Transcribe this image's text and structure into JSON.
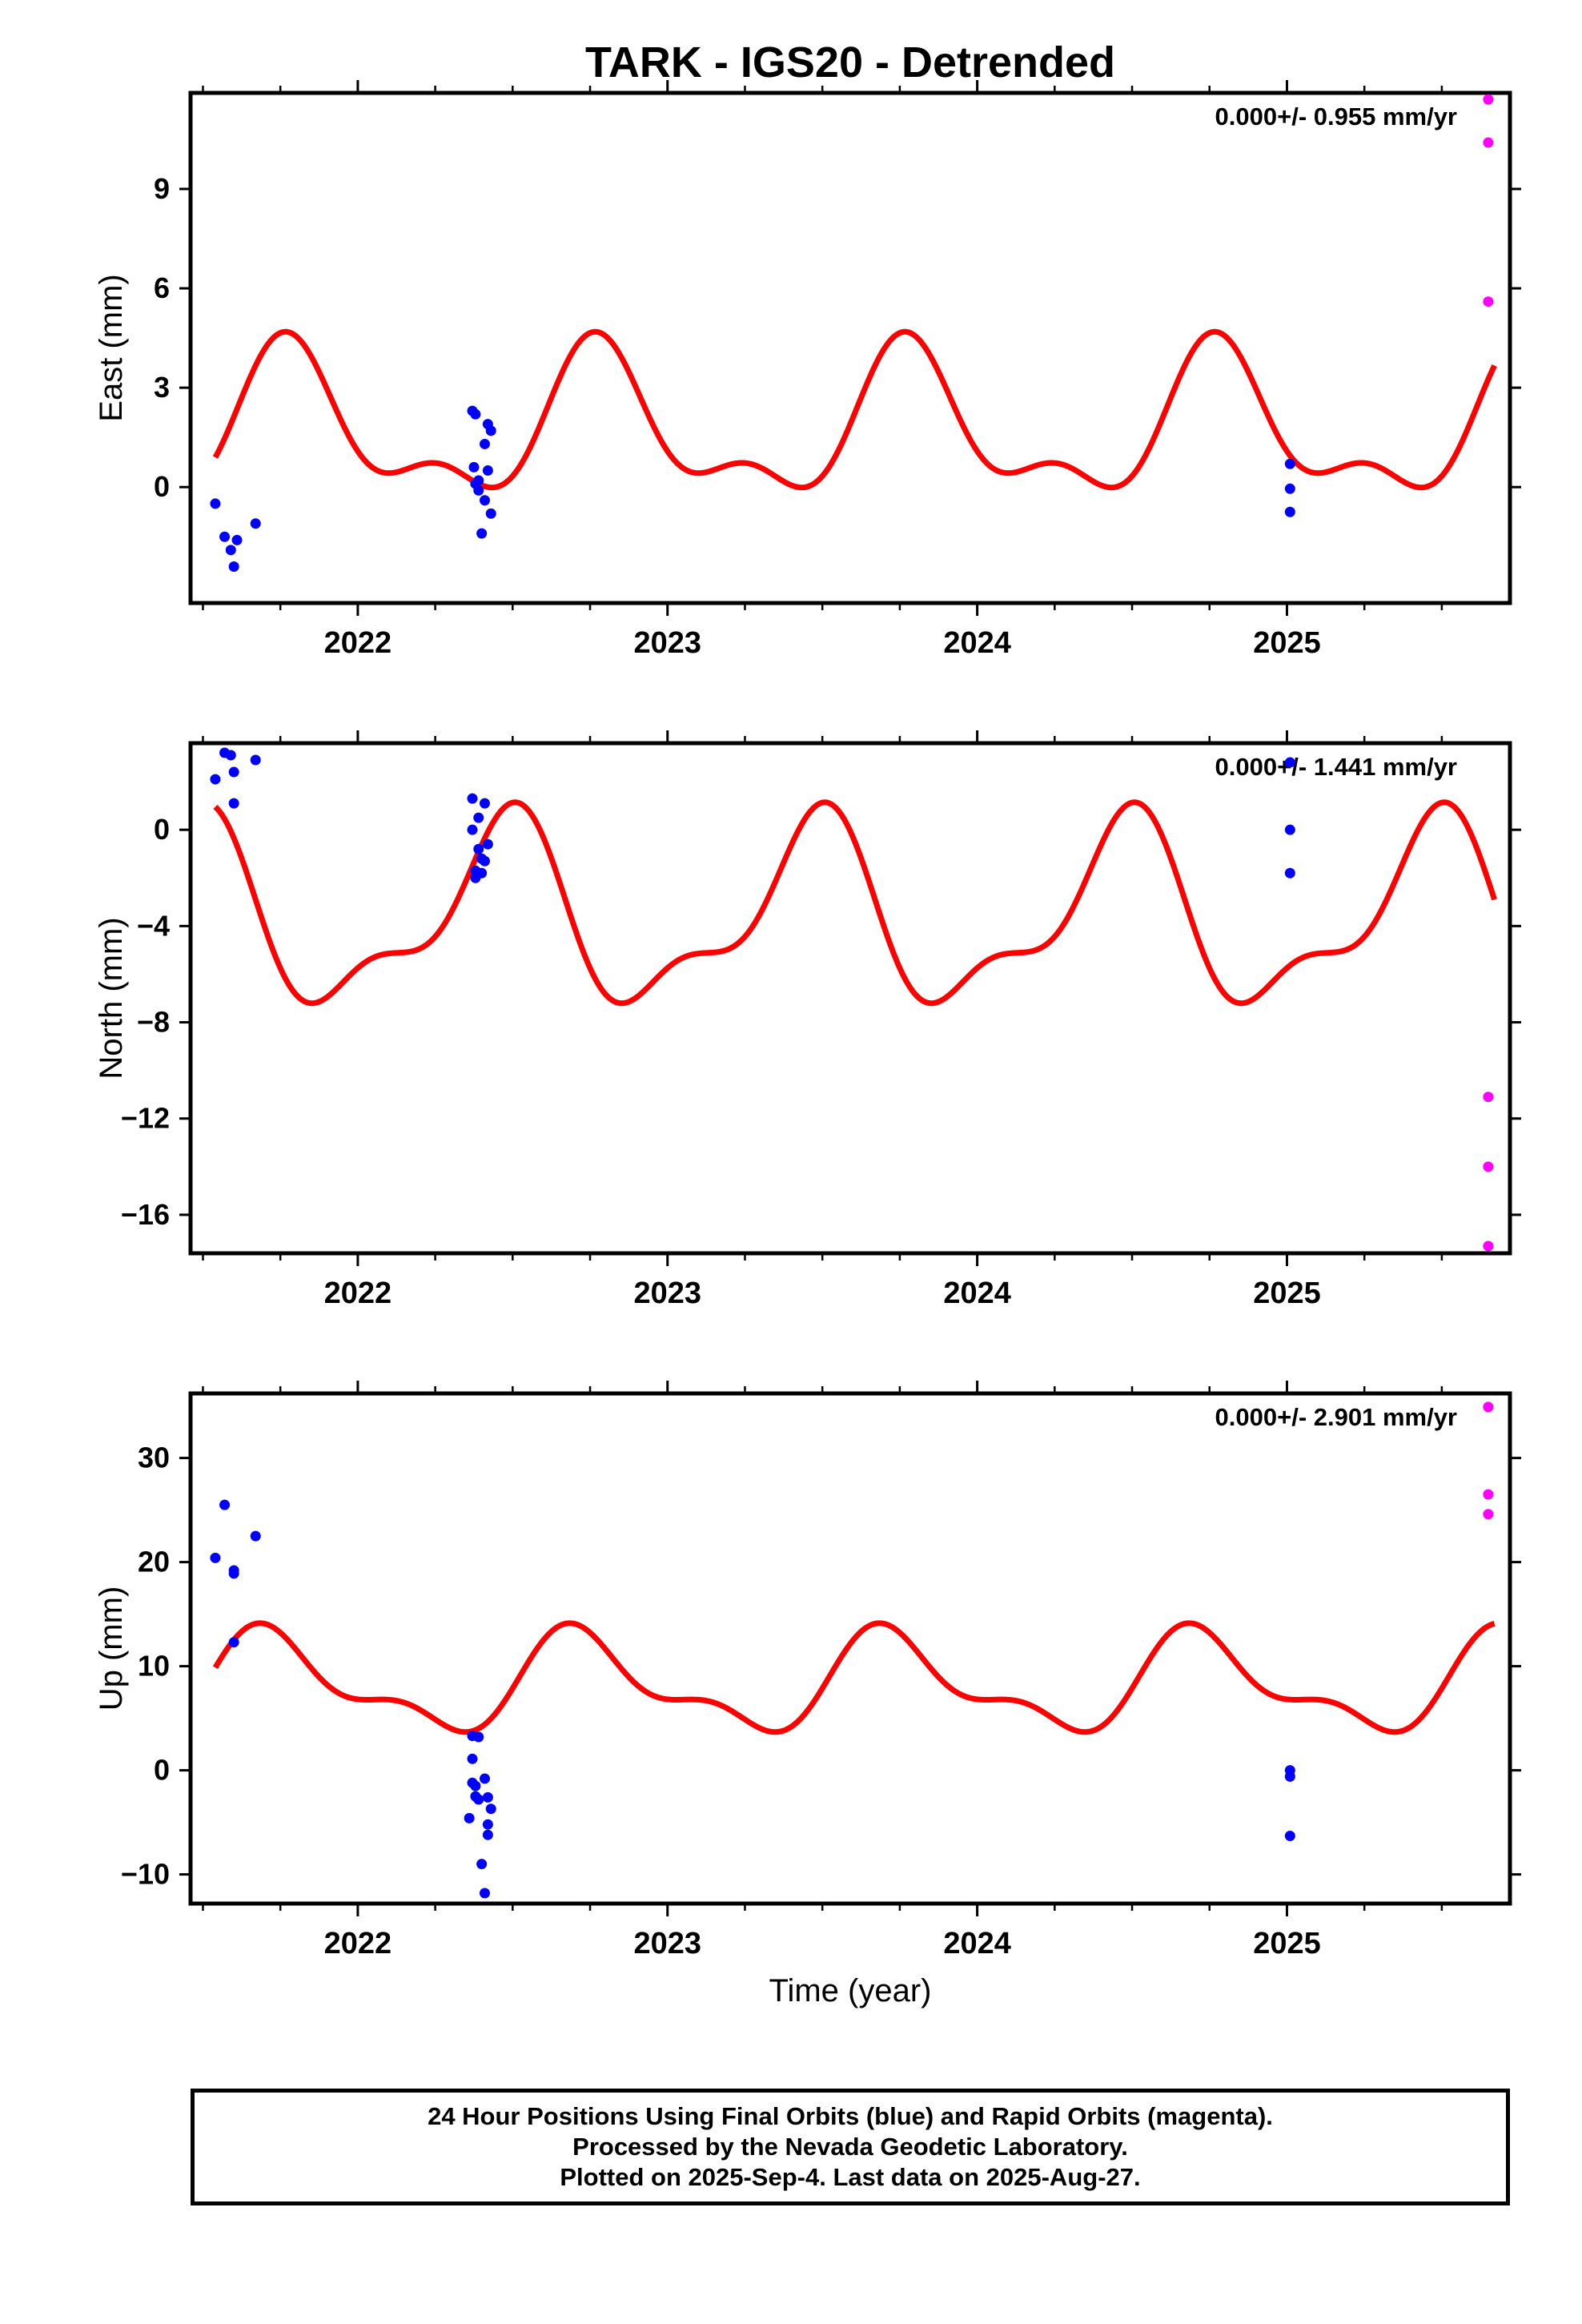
{
  "title": "TARK - IGS20 - Detrended",
  "chart_data": [
    {
      "type": "scatter",
      "ylabel": "East (mm)",
      "xlabel": "",
      "xlim": [
        2021.46,
        2025.72
      ],
      "ylim": [
        -3.5,
        11.9
      ],
      "yticks": [
        0,
        3,
        6,
        9
      ],
      "xticks": [
        2022,
        2023,
        2024,
        2025
      ],
      "annotation": "0.000+/- 0.955 mm/yr",
      "fit": {
        "offset": 1.7,
        "annual_amp": 2.0,
        "annual_phase_peak": 0.78,
        "semiannual_amp": 1.0,
        "semiannual_phase_peak": 0.26,
        "x_start": 2021.54,
        "x_end": 2025.67
      },
      "series": [
        {
          "color": "#0000ff",
          "points": [
            [
              2021.54,
              -0.5
            ],
            [
              2021.57,
              -1.5
            ],
            [
              2021.59,
              -1.9
            ],
            [
              2021.6,
              -2.4
            ],
            [
              2021.61,
              -1.6
            ],
            [
              2021.67,
              -1.1
            ],
            [
              2022.37,
              2.3
            ],
            [
              2022.38,
              2.2
            ],
            [
              2022.375,
              0.6
            ],
            [
              2022.38,
              0.1
            ],
            [
              2022.39,
              -0.1
            ],
            [
              2022.39,
              0.2
            ],
            [
              2022.4,
              -1.4
            ],
            [
              2022.41,
              -0.4
            ],
            [
              2022.41,
              1.3
            ],
            [
              2022.42,
              0.5
            ],
            [
              2022.42,
              1.9
            ],
            [
              2022.43,
              1.7
            ],
            [
              2022.43,
              -0.8
            ],
            [
              2025.01,
              0.7
            ],
            [
              2025.01,
              -0.05
            ],
            [
              2025.01,
              -0.75
            ]
          ]
        },
        {
          "color": "#ff00ff",
          "points": [
            [
              2025.65,
              11.7
            ],
            [
              2025.65,
              10.4
            ],
            [
              2025.65,
              5.6
            ]
          ]
        }
      ]
    },
    {
      "type": "scatter",
      "ylabel": "North (mm)",
      "xlabel": "",
      "xlim": [
        2021.46,
        2025.72
      ],
      "ylim": [
        -17.6,
        3.6
      ],
      "yticks": [
        -16,
        -12,
        -8,
        -4,
        0
      ],
      "xticks": [
        2022,
        2023,
        2024,
        2025
      ],
      "annotation": "0.000+/- 1.441 mm/yr",
      "fit": {
        "offset": -3.7,
        "annual_amp": 3.5,
        "annual_phase_peak": 0.47,
        "semiannual_amp": 1.5,
        "semiannual_phase_peak": 0.03,
        "x_start": 2021.54,
        "x_end": 2025.67
      },
      "series": [
        {
          "color": "#0000ff",
          "points": [
            [
              2021.54,
              2.1
            ],
            [
              2021.57,
              3.2
            ],
            [
              2021.59,
              3.1
            ],
            [
              2021.6,
              2.4
            ],
            [
              2021.6,
              1.1
            ],
            [
              2021.67,
              2.9
            ],
            [
              2022.37,
              1.3
            ],
            [
              2022.37,
              0.0
            ],
            [
              2022.38,
              -1.7
            ],
            [
              2022.38,
              -2.0
            ],
            [
              2022.39,
              -0.8
            ],
            [
              2022.39,
              0.5
            ],
            [
              2022.4,
              -1.8
            ],
            [
              2022.4,
              -1.2
            ],
            [
              2022.41,
              1.1
            ],
            [
              2022.41,
              -1.3
            ],
            [
              2022.42,
              -0.6
            ],
            [
              2025.01,
              2.8
            ],
            [
              2025.01,
              0.0
            ],
            [
              2025.01,
              -1.8
            ]
          ]
        },
        {
          "color": "#ff00ff",
          "points": [
            [
              2025.65,
              -11.1
            ],
            [
              2025.65,
              -14.0
            ],
            [
              2025.65,
              -17.3
            ]
          ]
        }
      ]
    },
    {
      "type": "scatter",
      "ylabel": "Up (mm)",
      "xlabel": "Time (year)",
      "xlim": [
        2021.46,
        2025.72
      ],
      "ylim": [
        -12.8,
        36.2
      ],
      "yticks": [
        -10,
        0,
        10,
        20,
        30
      ],
      "xticks": [
        2022,
        2023,
        2024,
        2025
      ],
      "annotation": "0.000+/- 2.901 mm/yr",
      "fit": {
        "offset": 8.2,
        "annual_amp": 4.2,
        "annual_phase_peak": 0.73,
        "semiannual_amp": 2.0,
        "semiannual_phase_peak": 0.16,
        "x_start": 2021.54,
        "x_end": 2025.67
      },
      "series": [
        {
          "color": "#0000ff",
          "points": [
            [
              2021.54,
              20.4
            ],
            [
              2021.57,
              25.5
            ],
            [
              2021.6,
              19.2
            ],
            [
              2021.6,
              18.9
            ],
            [
              2021.6,
              12.3
            ],
            [
              2021.67,
              22.5
            ],
            [
              2022.37,
              3.3
            ],
            [
              2022.37,
              1.1
            ],
            [
              2022.37,
              -1.2
            ],
            [
              2022.36,
              -4.6
            ],
            [
              2022.38,
              -1.5
            ],
            [
              2022.38,
              -2.5
            ],
            [
              2022.39,
              3.2
            ],
            [
              2022.39,
              -2.8
            ],
            [
              2022.4,
              -9.0
            ],
            [
              2022.41,
              -11.8
            ],
            [
              2022.41,
              -0.8
            ],
            [
              2022.42,
              -2.6
            ],
            [
              2022.42,
              -5.2
            ],
            [
              2022.42,
              -6.2
            ],
            [
              2022.43,
              -3.7
            ],
            [
              2025.01,
              0.0
            ],
            [
              2025.01,
              -0.6
            ],
            [
              2025.01,
              -6.3
            ]
          ]
        },
        {
          "color": "#ff00ff",
          "points": [
            [
              2025.65,
              34.9
            ],
            [
              2025.65,
              26.5
            ],
            [
              2025.65,
              24.6
            ]
          ]
        }
      ]
    }
  ],
  "footer": {
    "line1": "24 Hour Positions Using Final Orbits (blue) and Rapid Orbits (magenta).",
    "line2": "Processed by the Nevada Geodetic Laboratory.",
    "line3": "Plotted on 2025-Sep-4. Last data on 2025-Aug-27."
  }
}
